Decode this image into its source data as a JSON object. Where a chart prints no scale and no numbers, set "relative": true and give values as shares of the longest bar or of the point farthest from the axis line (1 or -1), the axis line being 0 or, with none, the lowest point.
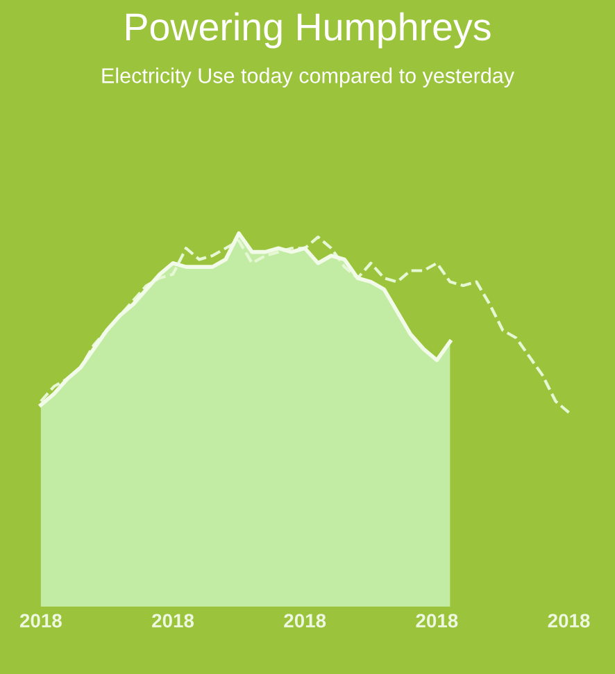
{
  "chart_data": {
    "type": "area",
    "title": "Powering Humphreys",
    "subtitle": "Electricity Use today compared to yesterday",
    "relative": true,
    "categories": [
      "2018",
      null,
      null,
      null,
      null,
      null,
      null,
      null,
      null,
      null,
      "2018",
      null,
      null,
      null,
      null,
      null,
      null,
      null,
      null,
      null,
      "2018",
      null,
      null,
      null,
      null,
      null,
      null,
      null,
      null,
      null,
      "2018",
      null,
      null,
      null,
      null,
      null,
      null,
      null,
      null,
      null,
      "2018"
    ],
    "series": [
      {
        "color": "#c2eba4",
        "line_style": "solid",
        "values": [
          0.54,
          0.57,
          0.61,
          0.64,
          0.69,
          0.74,
          0.78,
          0.81,
          0.85,
          0.89,
          0.92,
          0.91,
          0.91,
          0.91,
          0.93,
          1.0,
          0.95,
          0.95,
          0.96,
          0.95,
          0.96,
          0.92,
          0.94,
          0.93,
          0.88,
          0.87,
          0.85,
          0.79,
          0.73,
          0.69,
          0.66,
          0.71,
          null,
          null,
          null,
          null,
          null,
          null,
          null,
          null,
          null
        ]
      },
      {
        "type": "line",
        "color": "#e6f7d4",
        "line_style": "dashed",
        "values": [
          0.55,
          0.59,
          0.61,
          0.64,
          0.7,
          0.74,
          0.78,
          0.82,
          0.86,
          0.88,
          0.89,
          0.96,
          0.93,
          0.94,
          0.96,
          0.98,
          0.92,
          0.94,
          0.95,
          0.96,
          0.96,
          0.99,
          0.96,
          0.91,
          0.88,
          0.92,
          0.88,
          0.87,
          0.9,
          0.9,
          0.92,
          0.87,
          0.86,
          0.87,
          0.81,
          0.74,
          0.72,
          0.67,
          0.62,
          0.55,
          0.52
        ]
      }
    ]
  }
}
